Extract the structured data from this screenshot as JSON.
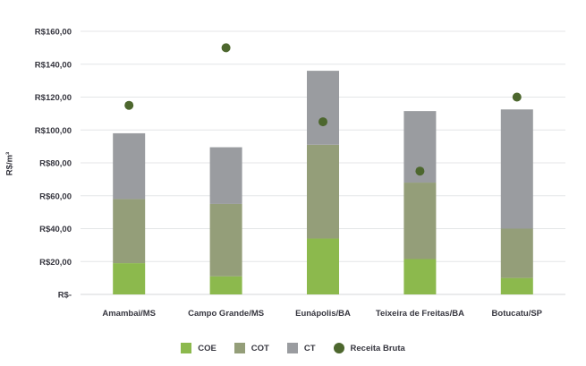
{
  "chart_data": {
    "type": "bar",
    "stacked": true,
    "title": "",
    "xlabel": "",
    "ylabel": "R$/m³",
    "ylim": [
      0,
      160
    ],
    "ytick_step": 20,
    "ytick_labels": [
      "R$-",
      "R$20,00",
      "R$40,00",
      "R$60,00",
      "R$80,00",
      "R$100,00",
      "R$120,00",
      "R$140,00",
      "R$160,00"
    ],
    "grid": true,
    "legend_position": "bottom",
    "categories": [
      "Amambai/MS",
      "Campo Grande/MS",
      "Eunápolis/BA",
      "Teixeira de Freitas/BA",
      "Botucatu/SP"
    ],
    "series": [
      {
        "name": "COE",
        "type": "bar",
        "color": "#8CB94D",
        "values": [
          19,
          11,
          34,
          21.5,
          10
        ]
      },
      {
        "name": "COT",
        "type": "bar",
        "color": "#949E79",
        "values": [
          39,
          44,
          57,
          46.5,
          30
        ]
      },
      {
        "name": "CT",
        "type": "bar",
        "color": "#9A9CA0",
        "values": [
          40,
          34.5,
          45,
          43.5,
          72.5
        ]
      },
      {
        "name": "Receita Bruta",
        "type": "point",
        "color": "#4D672E",
        "values": [
          115,
          150,
          105,
          75,
          120
        ]
      }
    ]
  },
  "colors": {
    "background": "#FFFFFF",
    "grid_line": "#E4E6E7",
    "axis_line": "#D4D7D8",
    "text": "#36363F"
  }
}
